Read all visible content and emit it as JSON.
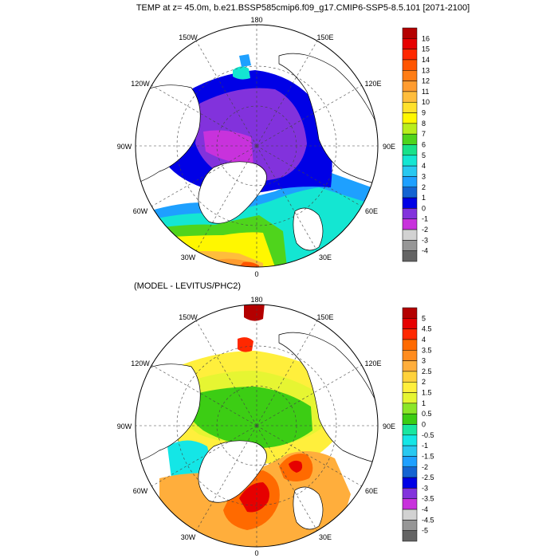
{
  "title": "TEMP at z=  45.0m, b.e21.BSSP585cmip6.f09_g17.CMIP6-SSP5-8.5.101 [2071-2100]",
  "subtitle": "(MODEL - LEVITUS/PHC2)",
  "longitude_labels": [
    "180",
    "150E",
    "120E",
    "90E",
    "60E",
    "30E",
    "0",
    "30W",
    "60W",
    "90W",
    "120W",
    "150W"
  ],
  "top_colorbar": {
    "labels": [
      "16",
      "15",
      "14",
      "13",
      "12",
      "11",
      "10",
      "9",
      "8",
      "7",
      "6",
      "5",
      "4",
      "3",
      "2",
      "1",
      "0",
      "-1",
      "-2",
      "-3",
      "-4"
    ],
    "colors": [
      "#b40000",
      "#e60000",
      "#ff2800",
      "#ff5500",
      "#ff7d14",
      "#ff9c30",
      "#ffbd3c",
      "#ffe12c",
      "#fff700",
      "#b9ee1c",
      "#4fd41c",
      "#19e189",
      "#14e6d2",
      "#28c8f0",
      "#1ea0ff",
      "#1464d2",
      "#0000e6",
      "#8232dc",
      "#c832dc",
      "#d2d2d2",
      "#969696",
      "#646464"
    ]
  },
  "bottom_colorbar": {
    "labels": [
      "5",
      "4.5",
      "4",
      "3.5",
      "3",
      "2.5",
      "2",
      "1.5",
      "1",
      "0.5",
      "0",
      "-0.5",
      "-1",
      "-1.5",
      "-2",
      "-2.5",
      "-3",
      "-3.5",
      "-4",
      "-4.5",
      "-5"
    ],
    "colors": [
      "#b40000",
      "#e60000",
      "#ff2800",
      "#ff6a00",
      "#ff8c1e",
      "#ffae3c",
      "#ffd23c",
      "#ffef3c",
      "#e6f532",
      "#8be628",
      "#3ccd14",
      "#19e6a0",
      "#14e6e6",
      "#28c8f0",
      "#1ea0ff",
      "#1464d2",
      "#0000e6",
      "#8232dc",
      "#c832dc",
      "#d2d2d2",
      "#969696",
      "#646464"
    ]
  },
  "colors": {
    "land_fill": "#ffffff",
    "top_warm_atlantic": "#ffe12c",
    "top_central_arctic": "#8232dc",
    "bottom_central_arctic": "#3ccd14",
    "bottom_hotspot": "#e60000"
  }
}
